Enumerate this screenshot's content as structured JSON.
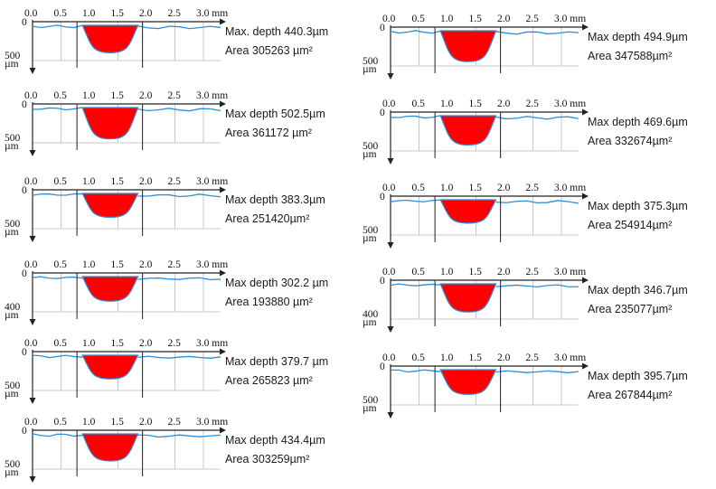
{
  "profiles": [
    {
      "x_ticks": [
        "0.0",
        "0.5",
        "1.0",
        "1.5",
        "2.0",
        "2.5",
        "3.0 mm"
      ],
      "y_top": "0",
      "y_bottom": "500",
      "y_unit": "µm",
      "depth_text": "Max. depth 440.3µm",
      "area_text": "Area 305263  µm²",
      "max_depth_um": 440.3,
      "area_um2": 305263
    },
    {
      "x_ticks": [
        "0.0",
        "0.5",
        "1.0",
        "1.5",
        "2.0",
        "2.5",
        "3.0 mm"
      ],
      "y_top": "0",
      "y_bottom": "500",
      "y_unit": "µm",
      "depth_text": "Max depth 502.5µm",
      "area_text": "Area 361172  µm²",
      "max_depth_um": 502.5,
      "area_um2": 361172
    },
    {
      "x_ticks": [
        "0.0",
        "0.5",
        "1.0",
        "1.5",
        "2.0",
        "2.5",
        "3.0 mm"
      ],
      "y_top": "0",
      "y_bottom": "500",
      "y_unit": "µm",
      "depth_text": "Max depth  383.3µm",
      "area_text": "Area  251420µm²",
      "max_depth_um": 383.3,
      "area_um2": 251420
    },
    {
      "x_ticks": [
        "0.0",
        "0.5",
        "1.0",
        "1.5",
        "2.0",
        "2.5",
        "3.0 mm"
      ],
      "y_top": "0",
      "y_bottom": "400",
      "y_unit": "µm",
      "depth_text": "Max depth  302.2  µm",
      "area_text": "Area  193880  µm²",
      "max_depth_um": 302.2,
      "area_um2": 193880
    },
    {
      "x_ticks": [
        "0.0",
        "0.5",
        "1.0",
        "1.5",
        "2.0",
        "2.5",
        "3.0 mm"
      ],
      "y_top": "0",
      "y_bottom": "500",
      "y_unit": "µm",
      "depth_text": "Max depth  379.7  µm",
      "area_text": "Area  265823  µm²",
      "max_depth_um": 379.7,
      "area_um2": 265823
    },
    {
      "x_ticks": [
        "0.0",
        "0.5",
        "1.0",
        "1.5",
        "2.0",
        "2.5",
        "3.0 mm"
      ],
      "y_top": "0",
      "y_bottom": "500",
      "y_unit": "µm",
      "depth_text": "Max depth 434.4µm",
      "area_text": "Area  303259µm²",
      "max_depth_um": 434.4,
      "area_um2": 303259
    },
    {
      "x_ticks": [
        "0.0",
        "0.5",
        "1.0",
        "1.5",
        "2.0",
        "2.5",
        "3.0 mm"
      ],
      "y_top": "0",
      "y_bottom": "500",
      "y_unit": "µm",
      "depth_text": "Max depth  494.9µm",
      "area_text": "Area  347588µm²",
      "max_depth_um": 494.9,
      "area_um2": 347588
    },
    {
      "x_ticks": [
        "0.0",
        "0.5",
        "1.0",
        "1.5",
        "2.0",
        "2.5",
        "3.0 mm"
      ],
      "y_top": "0",
      "y_bottom": "500",
      "y_unit": "µm",
      "depth_text": "Max depth  469.6µm",
      "area_text": "Area   332674µm²",
      "max_depth_um": 469.6,
      "area_um2": 332674
    },
    {
      "x_ticks": [
        "0.0",
        "0.5",
        "1.0",
        "1.5",
        "2.0",
        "2.5",
        "3.0 mm"
      ],
      "y_top": "0",
      "y_bottom": "500",
      "y_unit": "µm",
      "depth_text": "Max depth  375.3µm",
      "area_text": "Area 254914µm²",
      "max_depth_um": 375.3,
      "area_um2": 254914
    },
    {
      "x_ticks": [
        "0.0",
        "0.5",
        "1.0",
        "1.5",
        "2.0",
        "2.5",
        "3.0 mm"
      ],
      "y_top": "0",
      "y_bottom": "400",
      "y_unit": "µm",
      "depth_text": "Max depth  346.7µm",
      "area_text": "Area  235077µm²",
      "max_depth_um": 346.7,
      "area_um2": 235077
    },
    {
      "x_ticks": [
        "0.0",
        "0.5",
        "1.0",
        "1.5",
        "2.0",
        "2.5",
        "3.0 mm"
      ],
      "y_top": "0",
      "y_bottom": "500",
      "y_unit": "µm",
      "depth_text": "Max depth  395.7µm",
      "area_text": "Area  267844µm²",
      "max_depth_um": 395.7,
      "area_um2": 267844
    }
  ],
  "colors": {
    "profile_line": "#2b8fd8",
    "fill": "#ff0000",
    "grid": "#c8c8c8",
    "axis": "#222222"
  }
}
